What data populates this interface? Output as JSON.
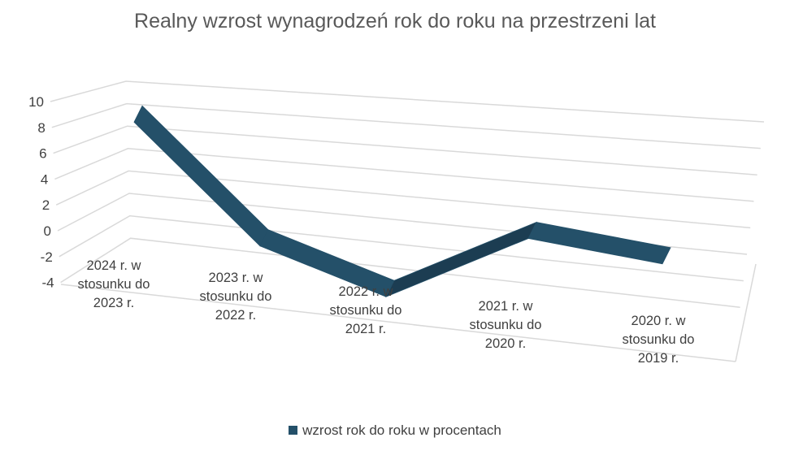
{
  "chart_data": {
    "type": "line",
    "subtype": "3d-line",
    "title": "Realny wzrost wynagrodzeń rok do roku na przestrzeni lat",
    "categories": [
      [
        "2024 r. w",
        "stosunku do",
        "2023 r."
      ],
      [
        "2023 r. w",
        "stosunku do",
        "2022 r."
      ],
      [
        "2022 r. w",
        "stosunku do",
        "2021 r."
      ],
      [
        "2021 r. w",
        "stosunku do",
        "2020 r."
      ],
      [
        "2020 r. w",
        "stosunku do",
        "2019 r."
      ]
    ],
    "series": [
      {
        "name": "wzrost rok do roku w procentach",
        "values": [
          9.5,
          0.7,
          -2.9,
          2.4,
          0.8
        ],
        "color": "#245069"
      }
    ],
    "yticks": [
      "10",
      "8",
      "6",
      "4",
      "2",
      "0",
      "-2",
      "-4"
    ],
    "ylim": [
      -4,
      10
    ],
    "grid": true,
    "legend": "bottom"
  }
}
